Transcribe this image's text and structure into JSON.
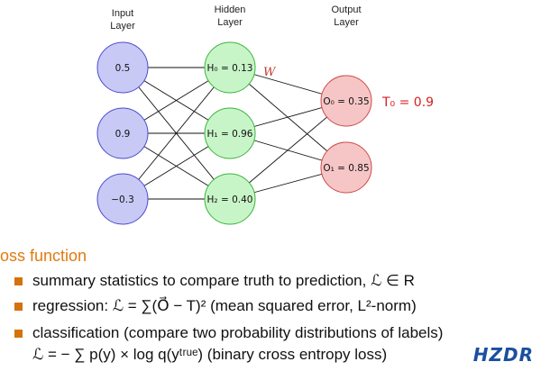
{
  "layers": {
    "input_title_line1": "Input",
    "input_title_line2": "Layer",
    "hidden_title_line1": "Hidden",
    "hidden_title_line2": "Layer",
    "output_title_line1": "Output",
    "output_title_line2": "Layer"
  },
  "nodes": {
    "input": [
      "0.5",
      "0.9",
      "−0.3"
    ],
    "hidden": [
      "H₀ = 0.13",
      "H₁ = 0.96",
      "H₂ = 0.40"
    ],
    "output": [
      "O₀ = 0.35",
      "O₁ = 0.85"
    ]
  },
  "weight_label": "W",
  "target_label": "T₀ = 0.9",
  "colors": {
    "input_fill": "#c9c9f6",
    "input_stroke": "#4b4bd0",
    "hidden_fill": "#c8f5c8",
    "hidden_stroke": "#3cb43c",
    "output_fill": "#f6c6c6",
    "output_stroke": "#d04b4b",
    "accent": "#d4720d"
  },
  "section": {
    "title": "Loss function"
  },
  "bullets": [
    "summary statistics to compare truth to prediction, ℒ ∈ R",
    "regression: ℒ = ∑(O⃗ − T)² (mean squared error, L²-norm)",
    "classification (compare two probability distributions of labels)",
    "ℒ = − ∑ p(y) × log q(yᵗʳᵘᵉ) (binary cross entropy loss)"
  ],
  "logo": "HZDR"
}
